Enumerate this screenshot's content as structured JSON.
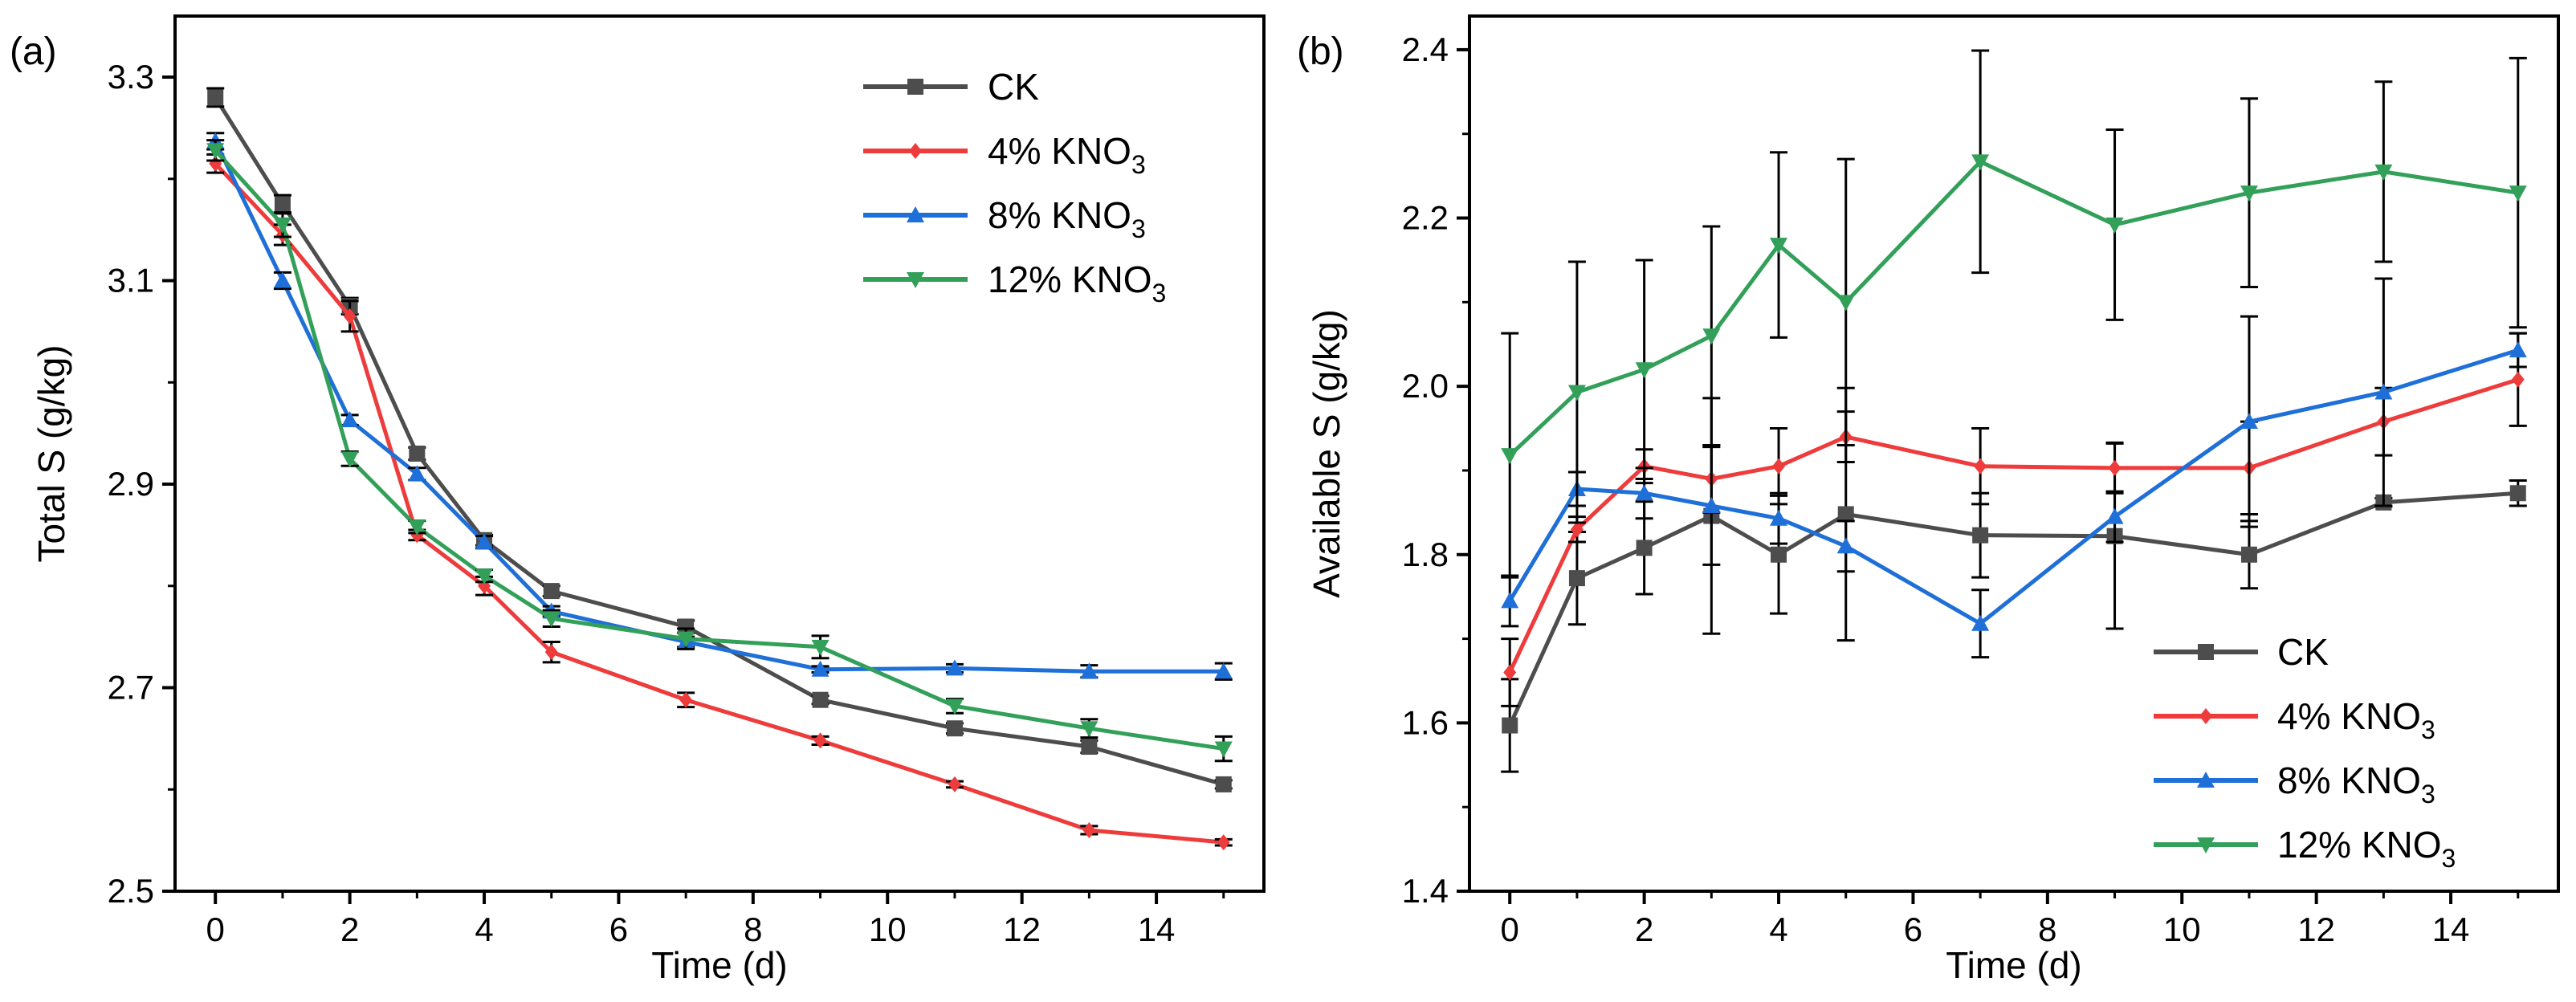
{
  "chart_data": [
    {
      "type": "line",
      "panel_label": "(a)",
      "xlabel": "Time (d)",
      "ylabel": "Total S (g/kg)",
      "xlim": [
        -0.6,
        15.6
      ],
      "ylim": [
        2.5,
        3.36
      ],
      "xticks": [
        0,
        2,
        4,
        6,
        8,
        10,
        12,
        14
      ],
      "yticks": [
        2.5,
        2.7,
        2.9,
        3.1,
        3.3
      ],
      "ytick_labels": [
        "2.5",
        "2.7",
        "2.9",
        "3.1",
        "3.3"
      ],
      "legend_position": "top-right",
      "x": [
        0,
        1,
        2,
        3,
        4,
        5,
        7,
        9,
        11,
        13,
        15
      ],
      "series": [
        {
          "name": "CK",
          "label_main": "CK",
          "label_sub": "",
          "color": "#4d4d4d",
          "marker": "square",
          "values": [
            3.28,
            3.175,
            3.075,
            2.93,
            2.845,
            2.795,
            2.76,
            2.688,
            2.66,
            2.642,
            2.605
          ],
          "errors": [
            0.009,
            0.009,
            0.008,
            0.006,
            0.005,
            0.005,
            0.006,
            0.004,
            0.005,
            0.006,
            0.004
          ]
        },
        {
          "name": "4% KNO3",
          "label_main": "4% KNO",
          "label_sub": "3",
          "color": "#ee3b3b",
          "marker": "diamond",
          "values": [
            3.215,
            3.145,
            3.065,
            2.85,
            2.8,
            2.735,
            2.688,
            2.648,
            2.605,
            2.56,
            2.548
          ],
          "errors": [
            0.009,
            0.01,
            0.015,
            0.005,
            0.009,
            0.01,
            0.007,
            0.004,
            0.003,
            0.004,
            0.003
          ]
        },
        {
          "name": "8% KNO3",
          "label_main": "8% KNO",
          "label_sub": "3",
          "color": "#1f6fd8",
          "marker": "triangle-up",
          "values": [
            3.237,
            3.1,
            2.963,
            2.91,
            2.843,
            2.775,
            2.745,
            2.718,
            2.719,
            2.716,
            2.716
          ],
          "errors": [
            0.008,
            0.008,
            0.005,
            0.006,
            0.006,
            0.005,
            0.005,
            0.003,
            0.004,
            0.006,
            0.008
          ]
        },
        {
          "name": "12% KNO3",
          "label_main": "12% KNO",
          "label_sub": "3",
          "color": "#33a05a",
          "marker": "triangle-down",
          "values": [
            3.228,
            3.155,
            2.925,
            2.858,
            2.81,
            2.768,
            2.748,
            2.74,
            2.682,
            2.66,
            2.64
          ],
          "errors": [
            0.01,
            0.012,
            0.007,
            0.006,
            0.006,
            0.008,
            0.01,
            0.011,
            0.007,
            0.009,
            0.012
          ]
        }
      ]
    },
    {
      "type": "line",
      "panel_label": "(b)",
      "xlabel": "Time (d)",
      "ylabel": "Available S (g/kg)",
      "xlim": [
        -0.6,
        15.6
      ],
      "ylim": [
        1.4,
        2.44
      ],
      "xticks": [
        0,
        2,
        4,
        6,
        8,
        10,
        12,
        14
      ],
      "yticks": [
        1.4,
        1.6,
        1.8,
        2.0,
        2.2,
        2.4
      ],
      "ytick_labels": [
        "1.4",
        "1.6",
        "1.8",
        "2.0",
        "2.2",
        "2.4"
      ],
      "legend_position": "bottom-right",
      "x": [
        0,
        1,
        2,
        3,
        4,
        5,
        7,
        9,
        11,
        13,
        15
      ],
      "series": [
        {
          "name": "CK",
          "label_main": "CK",
          "label_sub": "",
          "color": "#4d4d4d",
          "marker": "square",
          "values": [
            1.597,
            1.772,
            1.808,
            1.846,
            1.8,
            1.848,
            1.823,
            1.822,
            1.8,
            1.862,
            1.873
          ],
          "errors": [
            0.055,
            0.055,
            0.055,
            0.14,
            0.07,
            0.15,
            0.05,
            0.11,
            0.04,
            0.005,
            0.015
          ]
        },
        {
          "name": "4% KNO3",
          "label_main": "4% KNO",
          "label_sub": "3",
          "color": "#ee3b3b",
          "marker": "diamond",
          "values": [
            1.66,
            1.83,
            1.905,
            1.89,
            1.905,
            1.94,
            1.905,
            1.903,
            1.903,
            1.958,
            2.008
          ],
          "errors": [
            0.04,
            0.015,
            0.02,
            0.04,
            0.045,
            0.03,
            0.045,
            0.03,
            0.055,
            0.04,
            0.055
          ]
        },
        {
          "name": "8% KNO3",
          "label_main": "8% KNO",
          "label_sub": "3",
          "color": "#1f6fd8",
          "marker": "triangle-up",
          "values": [
            1.745,
            1.878,
            1.873,
            1.858,
            1.843,
            1.81,
            1.718,
            1.845,
            1.958,
            1.993,
            2.043
          ],
          "errors": [
            0.03,
            0.02,
            0.03,
            0.07,
            0.03,
            0.03,
            0.04,
            0.03,
            0.125,
            0.135,
            0.02
          ]
        },
        {
          "name": "12% KNO3",
          "label_main": "12% KNO",
          "label_sub": "3",
          "color": "#33a05a",
          "marker": "triangle-down",
          "values": [
            1.918,
            1.993,
            2.02,
            2.06,
            2.168,
            2.1,
            2.267,
            2.192,
            2.23,
            2.255,
            2.23
          ],
          "errors": [
            0.145,
            0.155,
            0.13,
            0.13,
            0.11,
            0.17,
            0.132,
            0.113,
            0.112,
            0.107,
            0.16
          ]
        }
      ]
    }
  ]
}
